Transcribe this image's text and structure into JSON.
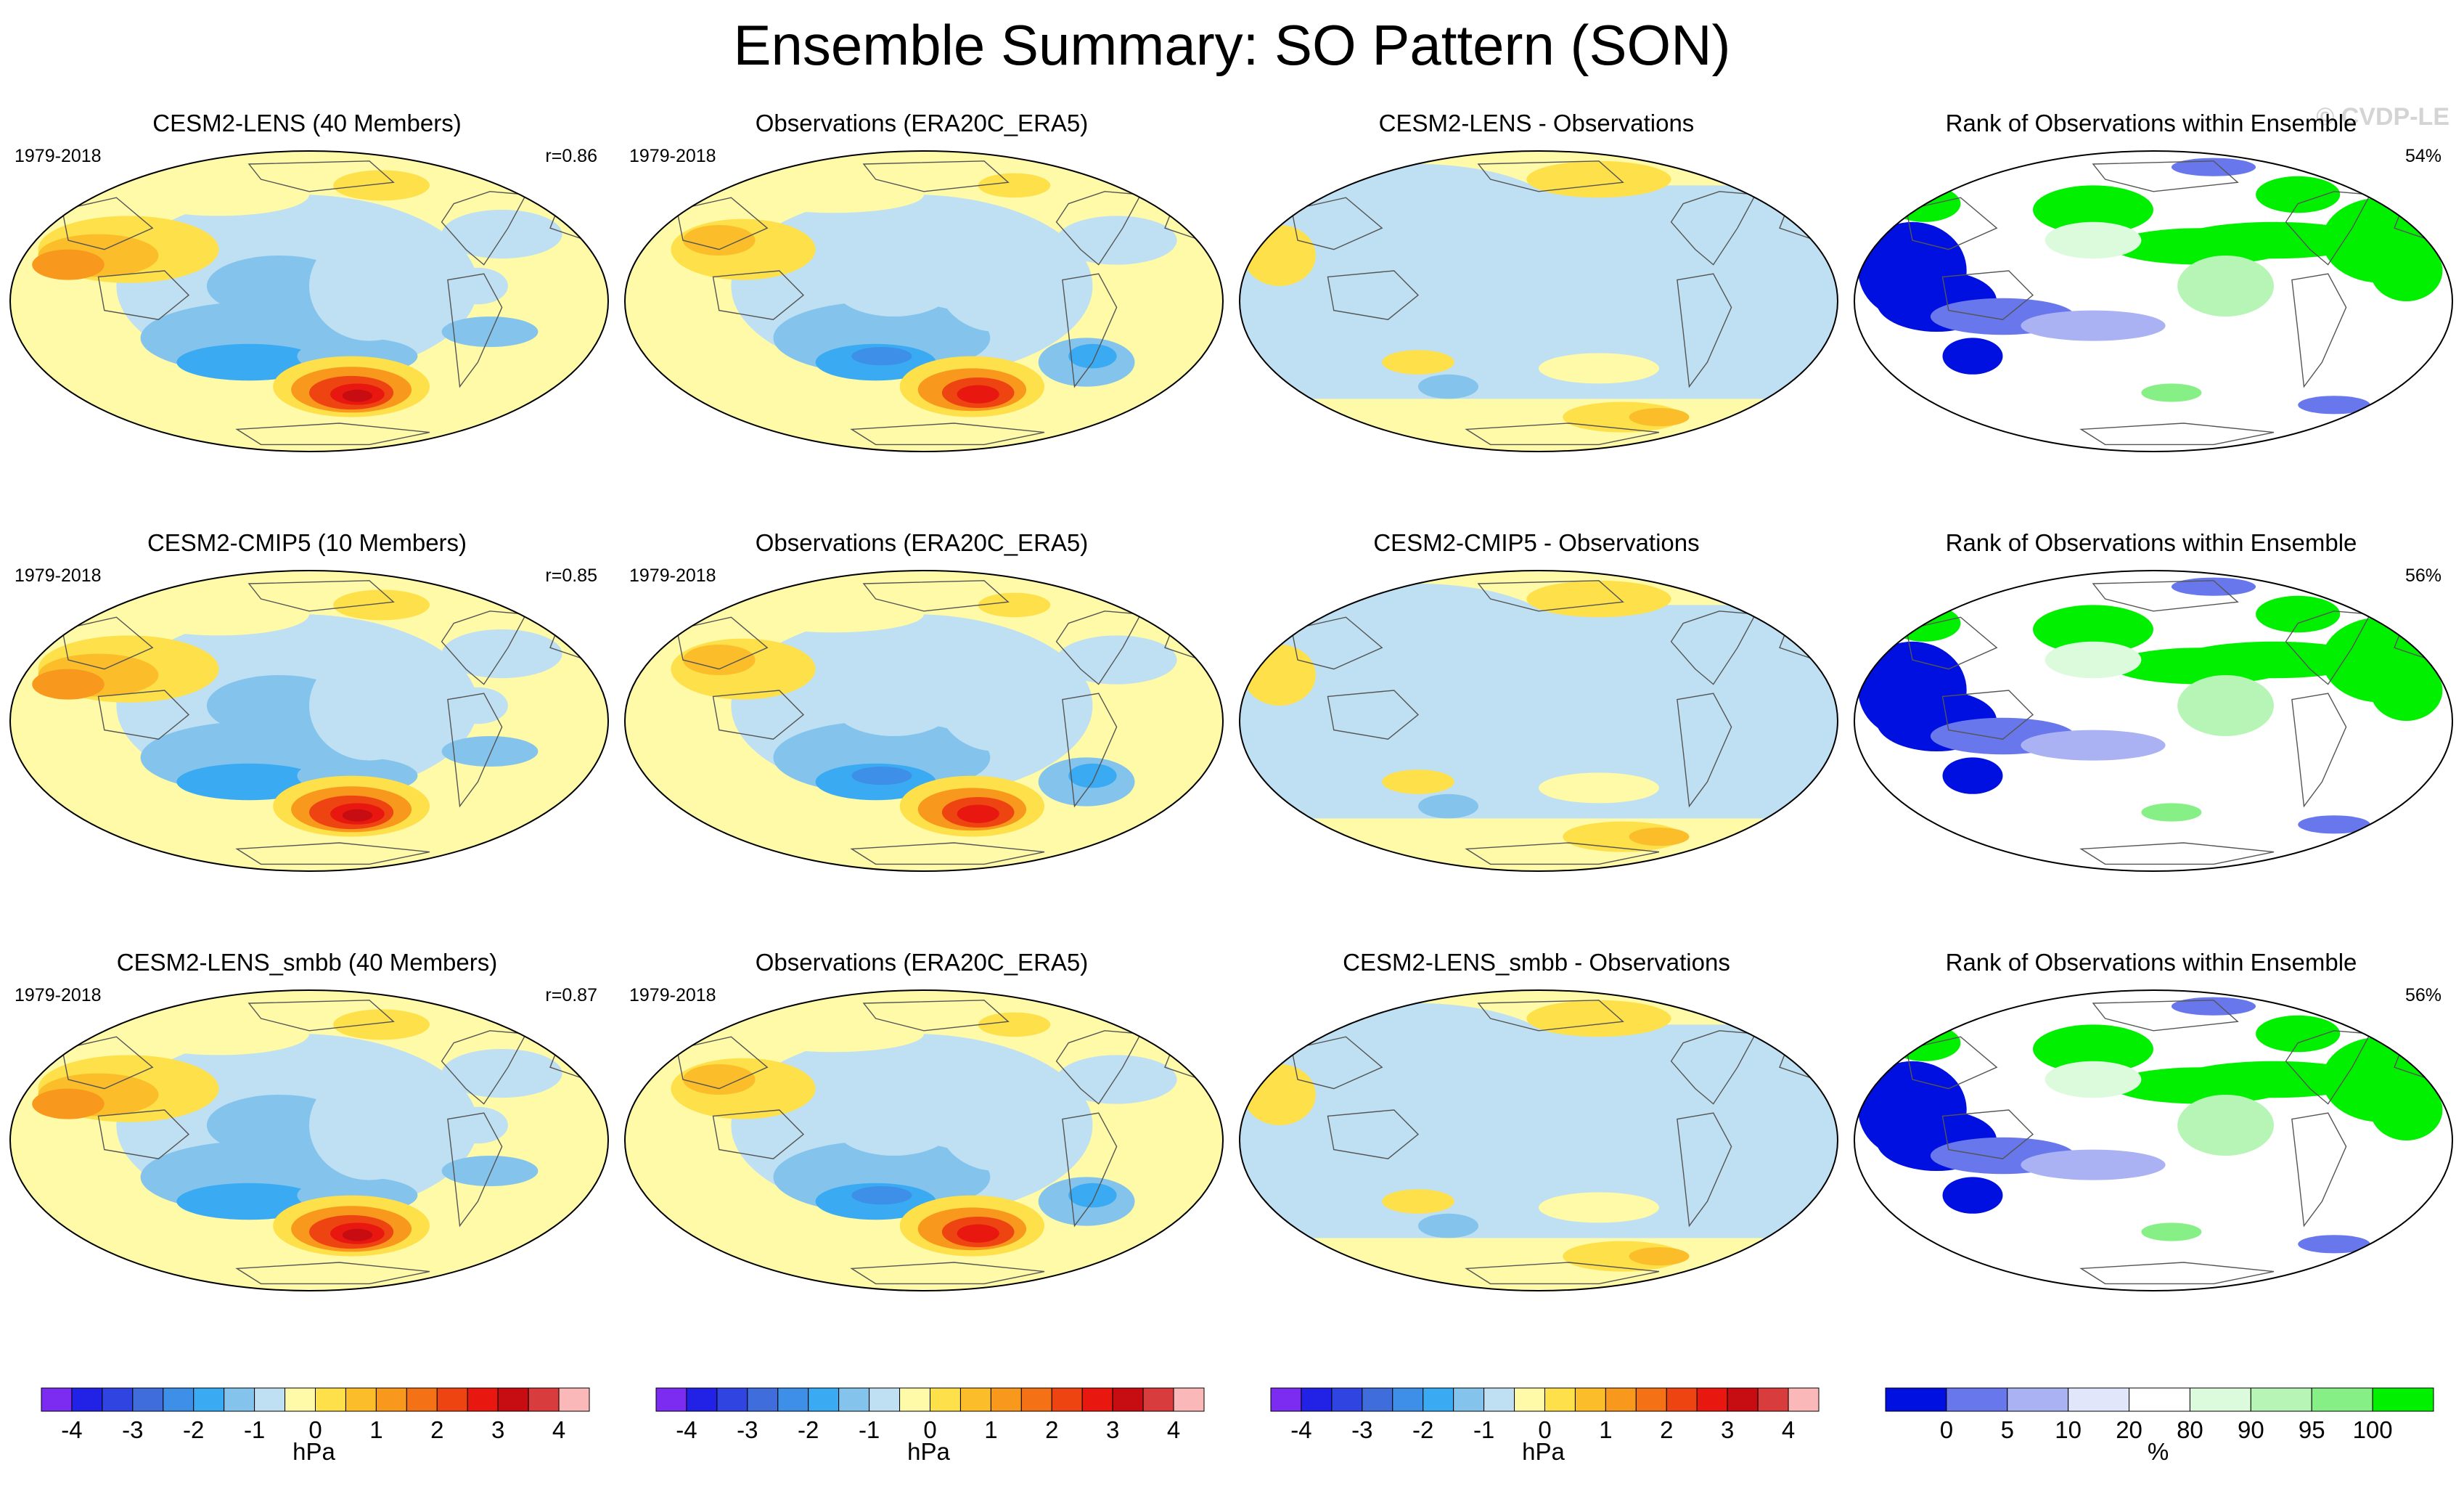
{
  "title": "Ensemble Summary: SO Pattern (SON)",
  "watermark": "© CVDP-LE",
  "colors": {
    "pressure_scale": [
      "#7b2cf0",
      "#2222e6",
      "#2f44e0",
      "#3f6edc",
      "#3d8fe8",
      "#3aaaf2",
      "#84c4ec",
      "#bfdff2",
      "#fefaa8",
      "#fde04a",
      "#fbbe2a",
      "#f8981c",
      "#f47116",
      "#ee4412",
      "#e8170f",
      "#c70d12",
      "#d93c3c",
      "#fbb8b8"
    ],
    "rank_scale": [
      "#0010e0",
      "#6878ec",
      "#aab2f4",
      "#e2e6fb",
      "#ffffff",
      "#dcfadc",
      "#b6f5b6",
      "#86f086",
      "#00f000"
    ],
    "land_outline": "#555555"
  },
  "chart_data": [
    {
      "type": "heatmap",
      "title": "CESM2-LENS (40 Members)",
      "period": "1979-2018",
      "correlation": "r=0.86",
      "pattern": "ensemble",
      "units": "hPa"
    },
    {
      "type": "heatmap",
      "title": "Observations (ERA20C_ERA5)",
      "period": "1979-2018",
      "pattern": "obs",
      "units": "hPa"
    },
    {
      "type": "heatmap",
      "title": "CESM2-LENS - Observations",
      "pattern": "diff",
      "units": "hPa"
    },
    {
      "type": "heatmap",
      "title": "Rank of Observations within Ensemble",
      "rank_percent": "54%",
      "pattern": "rank",
      "units": "%"
    },
    {
      "type": "heatmap",
      "title": "CESM2-CMIP5 (10 Members)",
      "period": "1979-2018",
      "correlation": "r=0.85",
      "pattern": "ensemble",
      "units": "hPa"
    },
    {
      "type": "heatmap",
      "title": "Observations (ERA20C_ERA5)",
      "period": "1979-2018",
      "pattern": "obs",
      "units": "hPa"
    },
    {
      "type": "heatmap",
      "title": "CESM2-CMIP5 - Observations",
      "pattern": "diff",
      "units": "hPa"
    },
    {
      "type": "heatmap",
      "title": "Rank of Observations within Ensemble",
      "rank_percent": "56%",
      "pattern": "rank",
      "units": "%"
    },
    {
      "type": "heatmap",
      "title": "CESM2-LENS_smbb (40 Members)",
      "period": "1979-2018",
      "correlation": "r=0.87",
      "pattern": "ensemble",
      "units": "hPa"
    },
    {
      "type": "heatmap",
      "title": "Observations (ERA20C_ERA5)",
      "period": "1979-2018",
      "pattern": "obs",
      "units": "hPa"
    },
    {
      "type": "heatmap",
      "title": "CESM2-LENS_smbb - Observations",
      "pattern": "diff",
      "units": "hPa"
    },
    {
      "type": "heatmap",
      "title": "Rank of Observations within Ensemble",
      "rank_percent": "56%",
      "pattern": "rank",
      "units": "%"
    }
  ],
  "colorbars": [
    {
      "unit": "hPa",
      "labels": [
        "-4",
        "-3",
        "-2",
        "-1",
        "0",
        "1",
        "2",
        "3",
        "4"
      ]
    },
    {
      "unit": "hPa",
      "labels": [
        "-4",
        "-3",
        "-2",
        "-1",
        "0",
        "1",
        "2",
        "3",
        "4"
      ]
    },
    {
      "unit": "hPa",
      "labels": [
        "-4",
        "-3",
        "-2",
        "-1",
        "0",
        "1",
        "2",
        "3",
        "4"
      ]
    },
    {
      "unit": "%",
      "labels": [
        "0",
        "5",
        "10",
        "20",
        "80",
        "90",
        "95",
        "100"
      ]
    }
  ]
}
